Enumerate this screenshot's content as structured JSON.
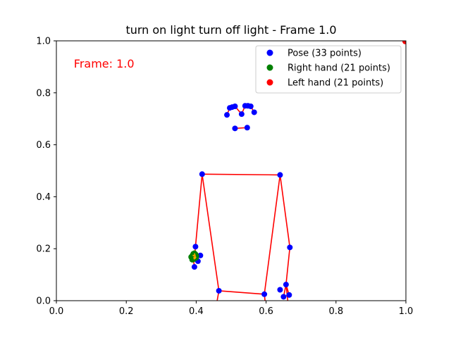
{
  "chart_data": {
    "type": "scatter",
    "title": "turn on light turn off light - Frame 1.0",
    "xlabel": "",
    "ylabel": "",
    "xlim": [
      0.0,
      1.0
    ],
    "ylim": [
      0.0,
      1.0
    ],
    "x_ticks": [
      "0.0",
      "0.2",
      "0.4",
      "0.6",
      "0.8",
      "1.0"
    ],
    "y_ticks": [
      "0.0",
      "0.2",
      "0.4",
      "0.6",
      "0.8",
      "1.0"
    ],
    "grid": false,
    "legend_position": "top-right",
    "annotation": {
      "text": "Frame: 1.0",
      "x": 0.05,
      "y": 0.91,
      "color": "#ff0000"
    },
    "colors": {
      "pose": "#0000ff",
      "right_hand": "#008000",
      "left_hand": "#ff0000",
      "connections": "#ff0000",
      "right_hand_lines": "#ffa500"
    },
    "series": [
      {
        "name": "Pose (33 points)",
        "color": "#0000ff",
        "points": [
          [
            0.488,
            0.715
          ],
          [
            0.496,
            0.742
          ],
          [
            0.503,
            0.745
          ],
          [
            0.511,
            0.748
          ],
          [
            0.53,
            0.718
          ],
          [
            0.54,
            0.75
          ],
          [
            0.548,
            0.75
          ],
          [
            0.556,
            0.748
          ],
          [
            0.566,
            0.725
          ],
          [
            0.511,
            0.663
          ],
          [
            0.546,
            0.666
          ],
          [
            0.417,
            0.487
          ],
          [
            0.64,
            0.484
          ],
          [
            0.398,
            0.208
          ],
          [
            0.668,
            0.205
          ],
          [
            0.395,
            0.13
          ],
          [
            0.412,
            0.174
          ],
          [
            0.405,
            0.152
          ],
          [
            0.392,
            0.16
          ],
          [
            0.465,
            0.038
          ],
          [
            0.595,
            0.025
          ],
          [
            0.64,
            0.042
          ],
          [
            0.657,
            0.062
          ],
          [
            0.65,
            0.015
          ],
          [
            0.666,
            0.022
          ],
          [
            1.0,
            1.0
          ]
        ]
      },
      {
        "name": "Right hand (21 points)",
        "color": "#008000",
        "points": [
          [
            0.388,
            0.165
          ],
          [
            0.39,
            0.175
          ],
          [
            0.392,
            0.18
          ],
          [
            0.395,
            0.182
          ],
          [
            0.398,
            0.178
          ],
          [
            0.4,
            0.172
          ],
          [
            0.393,
            0.16
          ],
          [
            0.389,
            0.158
          ],
          [
            0.386,
            0.168
          ],
          [
            0.399,
            0.165
          ],
          [
            0.396,
            0.168
          ]
        ]
      },
      {
        "name": "Left hand (21 points)",
        "color": "#ff0000",
        "points": [
          [
            1.0,
            1.0
          ],
          [
            0.998,
            0.998
          ]
        ]
      }
    ],
    "connections": [
      [
        [
          0.488,
          0.715
        ],
        [
          0.496,
          0.742
        ]
      ],
      [
        [
          0.496,
          0.742
        ],
        [
          0.503,
          0.745
        ]
      ],
      [
        [
          0.503,
          0.745
        ],
        [
          0.511,
          0.748
        ]
      ],
      [
        [
          0.511,
          0.748
        ],
        [
          0.53,
          0.718
        ]
      ],
      [
        [
          0.53,
          0.718
        ],
        [
          0.54,
          0.75
        ]
      ],
      [
        [
          0.54,
          0.75
        ],
        [
          0.548,
          0.75
        ]
      ],
      [
        [
          0.548,
          0.75
        ],
        [
          0.556,
          0.748
        ]
      ],
      [
        [
          0.556,
          0.748
        ],
        [
          0.566,
          0.725
        ]
      ],
      [
        [
          0.511,
          0.663
        ],
        [
          0.546,
          0.666
        ]
      ],
      [
        [
          0.417,
          0.487
        ],
        [
          0.64,
          0.484
        ]
      ],
      [
        [
          0.417,
          0.487
        ],
        [
          0.398,
          0.208
        ]
      ],
      [
        [
          0.398,
          0.208
        ],
        [
          0.395,
          0.165
        ]
      ],
      [
        [
          0.64,
          0.484
        ],
        [
          0.668,
          0.205
        ]
      ],
      [
        [
          0.668,
          0.205
        ],
        [
          0.657,
          0.062
        ]
      ],
      [
        [
          0.417,
          0.487
        ],
        [
          0.465,
          0.038
        ]
      ],
      [
        [
          0.64,
          0.484
        ],
        [
          0.595,
          0.025
        ]
      ],
      [
        [
          0.465,
          0.038
        ],
        [
          0.595,
          0.025
        ]
      ],
      [
        [
          0.465,
          0.038
        ],
        [
          0.46,
          0.0
        ]
      ],
      [
        [
          0.595,
          0.025
        ],
        [
          0.597,
          0.0
        ]
      ],
      [
        [
          0.657,
          0.062
        ],
        [
          0.65,
          0.015
        ]
      ],
      [
        [
          0.657,
          0.062
        ],
        [
          0.666,
          0.022
        ]
      ],
      [
        [
          0.65,
          0.015
        ],
        [
          0.666,
          0.022
        ]
      ],
      [
        [
          0.657,
          0.062
        ],
        [
          0.662,
          0.0
        ]
      ],
      [
        [
          0.392,
          0.16
        ],
        [
          0.412,
          0.174
        ]
      ],
      [
        [
          0.392,
          0.16
        ],
        [
          0.395,
          0.13
        ]
      ],
      [
        [
          0.392,
          0.16
        ],
        [
          0.405,
          0.152
        ]
      ]
    ],
    "right_hand_lines": [
      [
        [
          0.39,
          0.175
        ],
        [
          0.398,
          0.17
        ]
      ],
      [
        [
          0.392,
          0.165
        ],
        [
          0.4,
          0.168
        ]
      ],
      [
        [
          0.393,
          0.16
        ],
        [
          0.399,
          0.165
        ]
      ],
      [
        [
          0.395,
          0.182
        ],
        [
          0.397,
          0.172
        ]
      ]
    ]
  }
}
